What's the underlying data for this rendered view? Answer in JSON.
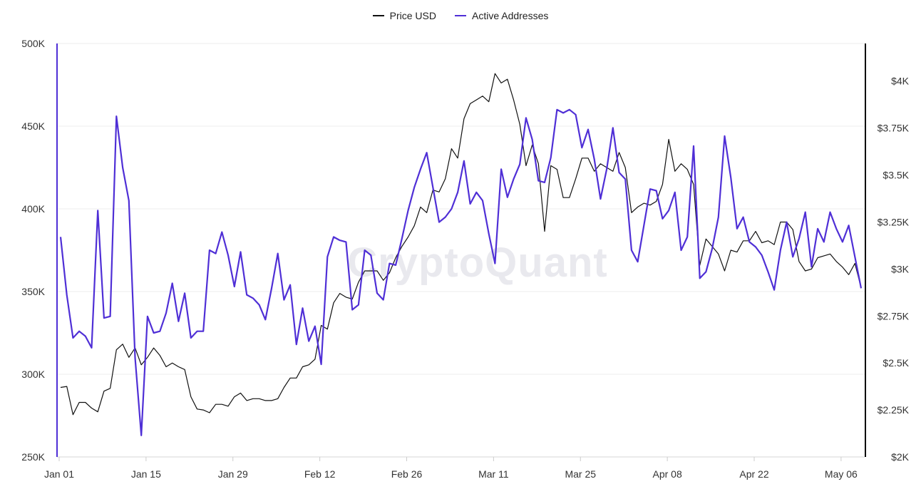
{
  "legend": {
    "price_label": "Price USD",
    "addresses_label": "Active Addresses"
  },
  "watermark": "CryptoQuant",
  "colors": {
    "price": "#111111",
    "addresses": "#4f2fd6",
    "grid": "#ececec",
    "right_axis_line": "#000000"
  },
  "chart_data": {
    "type": "line",
    "x_start": "Jan 01",
    "x_end": "May 10",
    "x_tick_labels": [
      "Jan 01",
      "Jan 15",
      "Jan 29",
      "Feb 12",
      "Feb 26",
      "Mar 11",
      "Mar 25",
      "Apr 08",
      "Apr 22",
      "May 06"
    ],
    "x_tick_days": [
      0,
      14,
      28,
      42,
      56,
      70,
      84,
      98,
      112,
      126
    ],
    "y_left": {
      "range": [
        250000,
        500000
      ],
      "ticks": [
        250000,
        300000,
        350000,
        400000,
        450000,
        500000
      ],
      "tick_labels": [
        "250K",
        "300K",
        "350K",
        "400K",
        "450K",
        "500K"
      ]
    },
    "y_right": {
      "range": [
        2000,
        4200
      ],
      "ticks": [
        2000,
        2250,
        2500,
        2750,
        3000,
        3250,
        3500,
        3750,
        4000
      ],
      "tick_labels": [
        "$2K",
        "$2.25K",
        "$2.5K",
        "$2.75K",
        "$3K",
        "$3.25K",
        "$3.5K",
        "$3.75K",
        "$4K"
      ]
    },
    "grid": true,
    "legend_position": "top-center",
    "series": [
      {
        "name": "Price USD",
        "axis": "right",
        "points": [
          [
            0,
            2370
          ],
          [
            1,
            2375
          ],
          [
            2,
            2225
          ],
          [
            3,
            2290
          ],
          [
            4,
            2290
          ],
          [
            5,
            2260
          ],
          [
            6,
            2240
          ],
          [
            7,
            2350
          ],
          [
            8,
            2365
          ],
          [
            9,
            2570
          ],
          [
            10,
            2600
          ],
          [
            11,
            2530
          ],
          [
            12,
            2580
          ],
          [
            13,
            2490
          ],
          [
            14,
            2530
          ],
          [
            15,
            2580
          ],
          [
            16,
            2540
          ],
          [
            17,
            2480
          ],
          [
            18,
            2500
          ],
          [
            19,
            2480
          ],
          [
            20,
            2465
          ],
          [
            21,
            2320
          ],
          [
            22,
            2255
          ],
          [
            23,
            2250
          ],
          [
            24,
            2235
          ],
          [
            25,
            2280
          ],
          [
            26,
            2280
          ],
          [
            27,
            2270
          ],
          [
            28,
            2320
          ],
          [
            29,
            2340
          ],
          [
            30,
            2300
          ],
          [
            31,
            2310
          ],
          [
            32,
            2310
          ],
          [
            33,
            2300
          ],
          [
            34,
            2300
          ],
          [
            35,
            2310
          ],
          [
            36,
            2370
          ],
          [
            37,
            2420
          ],
          [
            38,
            2420
          ],
          [
            39,
            2480
          ],
          [
            40,
            2490
          ],
          [
            41,
            2520
          ],
          [
            42,
            2700
          ],
          [
            43,
            2680
          ],
          [
            44,
            2820
          ],
          [
            45,
            2870
          ],
          [
            46,
            2850
          ],
          [
            47,
            2840
          ],
          [
            48,
            2930
          ],
          [
            49,
            2990
          ],
          [
            50,
            2990
          ],
          [
            51,
            2990
          ],
          [
            52,
            2940
          ],
          [
            53,
            2980
          ],
          [
            54,
            3060
          ],
          [
            55,
            3120
          ],
          [
            56,
            3170
          ],
          [
            57,
            3230
          ],
          [
            58,
            3330
          ],
          [
            59,
            3300
          ],
          [
            60,
            3420
          ],
          [
            61,
            3410
          ],
          [
            62,
            3480
          ],
          [
            63,
            3640
          ],
          [
            64,
            3590
          ],
          [
            65,
            3800
          ],
          [
            66,
            3880
          ],
          [
            67,
            3900
          ],
          [
            68,
            3920
          ],
          [
            69,
            3890
          ],
          [
            70,
            4040
          ],
          [
            71,
            3990
          ],
          [
            72,
            4010
          ],
          [
            73,
            3900
          ],
          [
            74,
            3770
          ],
          [
            75,
            3550
          ],
          [
            76,
            3660
          ],
          [
            77,
            3560
          ],
          [
            78,
            3200
          ],
          [
            79,
            3550
          ],
          [
            80,
            3530
          ],
          [
            81,
            3380
          ],
          [
            82,
            3380
          ],
          [
            83,
            3480
          ],
          [
            84,
            3590
          ],
          [
            85,
            3590
          ],
          [
            86,
            3520
          ],
          [
            87,
            3560
          ],
          [
            88,
            3540
          ],
          [
            89,
            3520
          ],
          [
            90,
            3620
          ],
          [
            91,
            3540
          ],
          [
            92,
            3300
          ],
          [
            93,
            3330
          ],
          [
            94,
            3350
          ],
          [
            95,
            3340
          ],
          [
            96,
            3360
          ],
          [
            97,
            3450
          ],
          [
            98,
            3690
          ],
          [
            99,
            3520
          ],
          [
            100,
            3560
          ],
          [
            101,
            3530
          ],
          [
            102,
            3450
          ],
          [
            103,
            3020
          ],
          [
            104,
            3160
          ],
          [
            105,
            3120
          ],
          [
            106,
            3080
          ],
          [
            107,
            2990
          ],
          [
            108,
            3100
          ],
          [
            109,
            3090
          ],
          [
            110,
            3150
          ],
          [
            111,
            3150
          ],
          [
            112,
            3200
          ],
          [
            113,
            3140
          ],
          [
            114,
            3150
          ],
          [
            115,
            3130
          ],
          [
            116,
            3250
          ],
          [
            117,
            3250
          ],
          [
            118,
            3210
          ],
          [
            119,
            3040
          ],
          [
            120,
            2990
          ],
          [
            121,
            3000
          ],
          [
            122,
            3060
          ],
          [
            123,
            3070
          ],
          [
            124,
            3080
          ],
          [
            125,
            3040
          ],
          [
            126,
            3010
          ],
          [
            127,
            2970
          ],
          [
            128,
            3030
          ],
          [
            129,
            2900
          ]
        ]
      },
      {
        "name": "Active Addresses",
        "axis": "left",
        "points": [
          [
            0,
            383000
          ],
          [
            1,
            348000
          ],
          [
            2,
            322000
          ],
          [
            3,
            326000
          ],
          [
            4,
            323000
          ],
          [
            5,
            316000
          ],
          [
            6,
            399000
          ],
          [
            7,
            334000
          ],
          [
            8,
            335000
          ],
          [
            9,
            456000
          ],
          [
            10,
            425000
          ],
          [
            11,
            405000
          ],
          [
            12,
            310000
          ],
          [
            13,
            263000
          ],
          [
            14,
            335000
          ],
          [
            15,
            325000
          ],
          [
            16,
            326000
          ],
          [
            17,
            337000
          ],
          [
            18,
            355000
          ],
          [
            19,
            332000
          ],
          [
            20,
            349000
          ],
          [
            21,
            322000
          ],
          [
            22,
            326000
          ],
          [
            23,
            326000
          ],
          [
            24,
            375000
          ],
          [
            25,
            373000
          ],
          [
            26,
            386000
          ],
          [
            27,
            372000
          ],
          [
            28,
            353000
          ],
          [
            29,
            374000
          ],
          [
            30,
            348000
          ],
          [
            31,
            346000
          ],
          [
            32,
            342000
          ],
          [
            33,
            333000
          ],
          [
            34,
            352000
          ],
          [
            35,
            373000
          ],
          [
            36,
            345000
          ],
          [
            37,
            354000
          ],
          [
            38,
            318000
          ],
          [
            39,
            340000
          ],
          [
            40,
            320000
          ],
          [
            41,
            329000
          ],
          [
            42,
            306000
          ],
          [
            43,
            371000
          ],
          [
            44,
            383000
          ],
          [
            45,
            381000
          ],
          [
            46,
            380000
          ],
          [
            47,
            339000
          ],
          [
            48,
            342000
          ],
          [
            49,
            375000
          ],
          [
            50,
            372000
          ],
          [
            51,
            349000
          ],
          [
            52,
            345000
          ],
          [
            53,
            367000
          ],
          [
            54,
            366000
          ],
          [
            55,
            382000
          ],
          [
            56,
            399000
          ],
          [
            57,
            413000
          ],
          [
            58,
            424000
          ],
          [
            59,
            434000
          ],
          [
            60,
            413000
          ],
          [
            61,
            392000
          ],
          [
            62,
            395000
          ],
          [
            63,
            400000
          ],
          [
            64,
            410000
          ],
          [
            65,
            429000
          ],
          [
            66,
            403000
          ],
          [
            67,
            410000
          ],
          [
            68,
            405000
          ],
          [
            69,
            385000
          ],
          [
            70,
            367000
          ],
          [
            71,
            424000
          ],
          [
            72,
            407000
          ],
          [
            73,
            418000
          ],
          [
            74,
            427000
          ],
          [
            75,
            455000
          ],
          [
            76,
            442000
          ],
          [
            77,
            417000
          ],
          [
            78,
            416000
          ],
          [
            79,
            431000
          ],
          [
            80,
            460000
          ],
          [
            81,
            458000
          ],
          [
            82,
            460000
          ],
          [
            83,
            457000
          ],
          [
            84,
            437000
          ],
          [
            85,
            448000
          ],
          [
            86,
            430000
          ],
          [
            87,
            406000
          ],
          [
            88,
            424000
          ],
          [
            89,
            449000
          ],
          [
            90,
            422000
          ],
          [
            91,
            418000
          ],
          [
            92,
            375000
          ],
          [
            93,
            368000
          ],
          [
            94,
            390000
          ],
          [
            95,
            412000
          ],
          [
            96,
            411000
          ],
          [
            97,
            394000
          ],
          [
            98,
            399000
          ],
          [
            99,
            410000
          ],
          [
            100,
            375000
          ],
          [
            101,
            383000
          ],
          [
            102,
            438000
          ],
          [
            103,
            358000
          ],
          [
            104,
            362000
          ],
          [
            105,
            376000
          ],
          [
            106,
            395000
          ],
          [
            107,
            444000
          ],
          [
            108,
            419000
          ],
          [
            109,
            388000
          ],
          [
            110,
            395000
          ],
          [
            111,
            380000
          ],
          [
            112,
            377000
          ],
          [
            113,
            372000
          ],
          [
            114,
            362000
          ],
          [
            115,
            351000
          ],
          [
            116,
            375000
          ],
          [
            117,
            392000
          ],
          [
            118,
            371000
          ],
          [
            119,
            382000
          ],
          [
            120,
            398000
          ],
          [
            121,
            365000
          ],
          [
            122,
            388000
          ],
          [
            123,
            380000
          ],
          [
            124,
            398000
          ],
          [
            125,
            388000
          ],
          [
            126,
            380000
          ],
          [
            127,
            390000
          ],
          [
            128,
            371000
          ],
          [
            129,
            352000
          ]
        ]
      }
    ]
  }
}
